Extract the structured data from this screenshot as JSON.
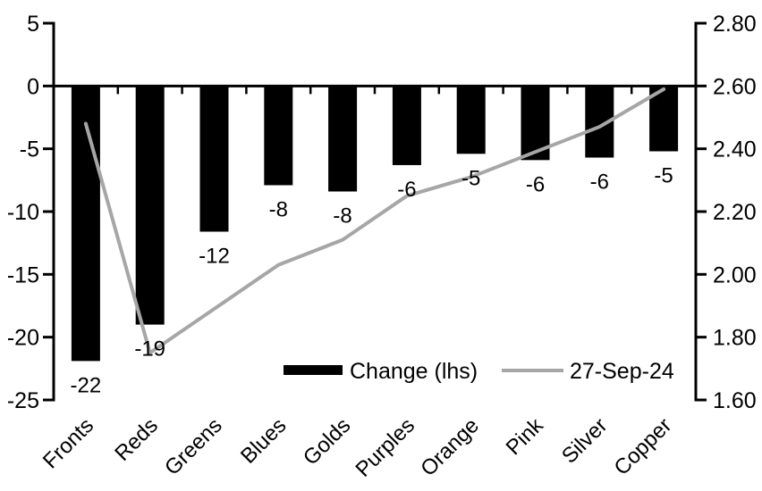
{
  "chart_data": {
    "type": "combo",
    "title": "",
    "categories": [
      "Fronts",
      "Reds",
      "Greens",
      "Blues",
      "Golds",
      "Purples",
      "Orange",
      "Pink",
      "Silver",
      "Copper"
    ],
    "series": [
      {
        "name": "Change (lhs)",
        "chart_type": "bar",
        "axis": "left",
        "color": "#000000",
        "values": [
          -21.9,
          -19.0,
          -11.6,
          -7.9,
          -8.4,
          -6.3,
          -5.4,
          -5.9,
          -5.7,
          -5.2
        ],
        "data_labels": [
          "-22",
          "-19",
          "-12",
          "-8",
          "-8",
          "-6",
          "-5",
          "-6",
          "-6",
          "-5"
        ]
      },
      {
        "name": "27-Sep-24",
        "chart_type": "line",
        "axis": "right",
        "color": "#a6a6a6",
        "values": [
          2.48,
          1.75,
          1.89,
          2.03,
          2.11,
          2.25,
          2.31,
          2.39,
          2.47,
          2.59
        ]
      }
    ],
    "left_axis": {
      "min": -25,
      "max": 5,
      "step": 5,
      "ticks": [
        "5",
        "0",
        "-5",
        "-10",
        "-15",
        "-20",
        "-25"
      ]
    },
    "right_axis": {
      "min": 1.6,
      "max": 2.8,
      "step": 0.2,
      "ticks": [
        "2.80",
        "2.60",
        "2.40",
        "2.20",
        "2.00",
        "1.80",
        "1.60"
      ]
    },
    "legend": {
      "position": "bottom-center",
      "items": [
        {
          "label": "Change (lhs)",
          "swatch": "bar",
          "color": "#000000"
        },
        {
          "label": "27-Sep-24",
          "swatch": "line",
          "color": "#a6a6a6"
        }
      ]
    },
    "grid": false,
    "background": "#ffffff",
    "axis_color": "#000000"
  }
}
